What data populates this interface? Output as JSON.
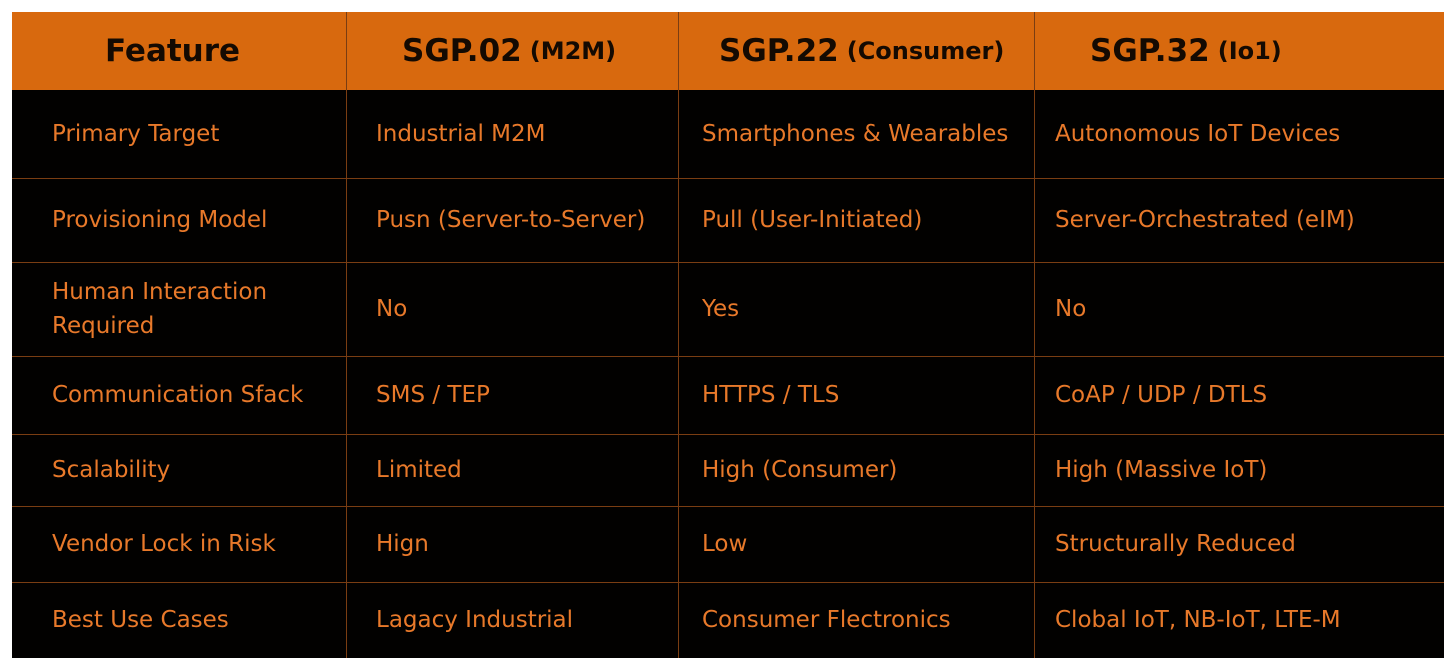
{
  "header": {
    "col0": {
      "main": "Feature",
      "sub": ""
    },
    "col1": {
      "main": "SGP.02",
      "sub": "(M2M)"
    },
    "col2": {
      "main": "SGP.22",
      "sub": "(Consumer)"
    },
    "col3": {
      "main": "SGP.32",
      "sub": "(Io1)"
    }
  },
  "rows": [
    {
      "feature": "Primary Target",
      "sgp02": "Industrial M2M",
      "sgp22": "Smartphones & Wearables",
      "sgp32": "Autonomous IoT Devices"
    },
    {
      "feature": "Provisioning Model",
      "sgp02": "Pusn (Server-to-Server)",
      "sgp22": "Pull (User-Initiated)",
      "sgp32": "Server-Orchestrated (eIM)"
    },
    {
      "feature": "Human Interaction Required",
      "sgp02": "No",
      "sgp22": "Yes",
      "sgp32": "No"
    },
    {
      "feature": "Communication Sfack",
      "sgp02": "SMS / TEP",
      "sgp22": "HTTPS / TLS",
      "sgp32": "CoAP / UDP / DTLS"
    },
    {
      "feature": "Scalability",
      "sgp02": "Limited",
      "sgp22": "High (Consumer)",
      "sgp32": "High (Massive IoT)"
    },
    {
      "feature": "Vendor Lock in Risk",
      "sgp02": "Hign",
      "sgp22": "Low",
      "sgp32": "Structurally Reduced"
    },
    {
      "feature": "Best Use Cases",
      "sgp02": "Lagacy Industrial",
      "sgp22": "Consumer Flectronics",
      "sgp32": "Clobal IoT, NB-IoT, LTE-M"
    }
  ],
  "colors": {
    "header_bg": "#d8690e",
    "header_text": "#140a02",
    "body_bg": "#020100",
    "body_text": "#e8792a",
    "grid_line": "#7a3d12"
  }
}
